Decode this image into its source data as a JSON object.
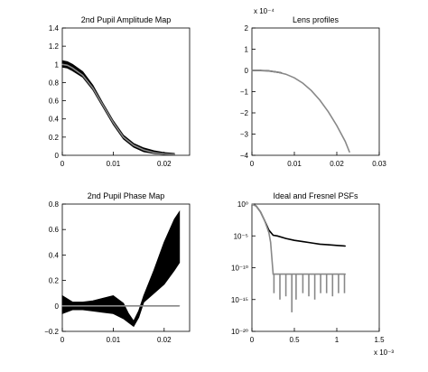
{
  "chart_data": [
    {
      "type": "line",
      "title": "2nd Pupil Amplitude Map",
      "xlabel": "",
      "ylabel": "",
      "xlim": [
        0,
        0.025
      ],
      "ylim": [
        0,
        1.4
      ],
      "x_ticks": [
        "0",
        "0.01",
        "0.02"
      ],
      "y_ticks": [
        "0",
        "0.2",
        "0.4",
        "0.6",
        "0.8",
        "1",
        "1.2",
        "1.4"
      ],
      "x_scale_label": "",
      "y_scale_label": "",
      "grid": false,
      "series": [
        {
          "color": "#000000",
          "style": "band (many overlapping black curves)",
          "x": [
            0.0,
            0.001,
            0.002,
            0.004,
            0.006,
            0.008,
            0.01,
            0.012,
            0.014,
            0.016,
            0.018,
            0.02,
            0.022
          ],
          "y_upper": [
            1.04,
            1.03,
            1.0,
            0.92,
            0.77,
            0.57,
            0.38,
            0.22,
            0.13,
            0.08,
            0.05,
            0.03,
            0.02
          ],
          "y_lower": [
            0.97,
            0.96,
            0.93,
            0.86,
            0.72,
            0.53,
            0.34,
            0.18,
            0.09,
            0.04,
            0.02,
            0.01,
            0.005
          ]
        },
        {
          "color": "#888888",
          "x": [
            0.0,
            0.001,
            0.002,
            0.004,
            0.006,
            0.008,
            0.01,
            0.012,
            0.014,
            0.016,
            0.018,
            0.02,
            0.022
          ],
          "y": [
            1.0,
            0.99,
            0.96,
            0.88,
            0.74,
            0.55,
            0.36,
            0.2,
            0.11,
            0.06,
            0.03,
            0.015,
            0.01
          ]
        }
      ]
    },
    {
      "type": "line",
      "title": "Lens profiles",
      "xlabel": "",
      "ylabel": "",
      "xlim": [
        0,
        0.03
      ],
      "ylim": [
        -4,
        2
      ],
      "x_ticks": [
        "0",
        "0.01",
        "0.02",
        "0.03"
      ],
      "y_ticks": [
        "−4",
        "−3",
        "−2",
        "−1",
        "0",
        "1",
        "2"
      ],
      "x_scale_label": "",
      "y_scale_label": "x 10⁻⁴",
      "grid": false,
      "series": [
        {
          "color": "#000000",
          "x": [
            0.0,
            0.002,
            0.004,
            0.006,
            0.007
          ],
          "y": [
            0.0,
            0.0,
            -0.02,
            -0.08,
            -0.12
          ]
        },
        {
          "color": "#888888",
          "x": [
            0.0,
            0.002,
            0.004,
            0.006,
            0.008,
            0.01,
            0.012,
            0.014,
            0.016,
            0.018,
            0.02,
            0.022,
            0.023
          ],
          "y": [
            0.0,
            -0.01,
            -0.03,
            -0.08,
            -0.18,
            -0.35,
            -0.6,
            -0.95,
            -1.4,
            -1.95,
            -2.6,
            -3.35,
            -3.85
          ]
        }
      ]
    },
    {
      "type": "line",
      "title": "2nd Pupil Phase Map",
      "xlabel": "",
      "ylabel": "",
      "xlim": [
        0,
        0.025
      ],
      "ylim": [
        -0.2,
        0.8
      ],
      "x_ticks": [
        "0",
        "0.01",
        "0.02"
      ],
      "y_ticks": [
        "−0.2",
        "0",
        "0.2",
        "0.4",
        "0.6",
        "0.8"
      ],
      "x_scale_label": "",
      "y_scale_label": "",
      "grid": false,
      "series": [
        {
          "color": "#000000",
          "style": "oscillating band (many overlapping black curves)",
          "x": [
            0.0,
            0.002,
            0.004,
            0.006,
            0.008,
            0.01,
            0.012,
            0.013,
            0.014,
            0.015,
            0.016,
            0.018,
            0.02,
            0.022,
            0.023
          ],
          "y_upper": [
            0.08,
            0.03,
            0.03,
            0.04,
            0.06,
            0.08,
            0.02,
            -0.06,
            -0.12,
            -0.04,
            0.08,
            0.28,
            0.5,
            0.68,
            0.74
          ],
          "y_lower": [
            -0.06,
            -0.03,
            -0.03,
            -0.04,
            -0.05,
            -0.06,
            -0.1,
            -0.13,
            -0.16,
            -0.09,
            0.03,
            0.1,
            0.17,
            0.28,
            0.34
          ]
        },
        {
          "color": "#888888",
          "x": [
            0.0,
            0.023
          ],
          "y": [
            0.0,
            0.0
          ]
        }
      ]
    },
    {
      "type": "line",
      "title": "Ideal and Fresnel PSFs",
      "xlabel": "",
      "ylabel": "",
      "xlim": [
        0,
        0.0015
      ],
      "ylim_log10": [
        -20,
        0
      ],
      "log_y": true,
      "x_ticks": [
        "0",
        "0.5",
        "1",
        "1.5"
      ],
      "y_ticks": [
        "10⁰",
        "10⁻⁵",
        "10⁻¹⁰",
        "10⁻¹⁵",
        "10⁻²⁰"
      ],
      "x_scale_label": "x 10⁻³",
      "y_scale_label": "",
      "grid": false,
      "series": [
        {
          "color": "#000000",
          "x": [
            0.0,
            0.05,
            0.1,
            0.15,
            0.2,
            0.25,
            0.3,
            0.4,
            0.5,
            0.6,
            0.7,
            0.8,
            0.9,
            1.0,
            1.1
          ],
          "y_log10": [
            0.0,
            -0.3,
            -1.2,
            -2.6,
            -4.1,
            -4.9,
            -5.0,
            -5.4,
            -5.7,
            -5.9,
            -6.1,
            -6.3,
            -6.4,
            -6.5,
            -6.6
          ]
        },
        {
          "color": "#888888",
          "x": [
            0.0,
            0.05,
            0.1,
            0.15,
            0.2,
            0.22,
            0.25,
            0.3,
            0.35,
            0.4,
            0.45,
            0.5,
            0.55,
            0.6,
            0.7,
            0.8,
            0.9,
            1.0,
            1.1
          ],
          "y_log10": [
            0.0,
            -0.3,
            -1.2,
            -2.6,
            -4.5,
            -6.0,
            -11.0,
            -11.0,
            -11.0,
            -11.0,
            -11.0,
            -11.0,
            -11.0,
            -11.0,
            -11.0,
            -11.0,
            -11.0,
            -11.0,
            -11.0
          ],
          "dip_x": [
            0.26,
            0.33,
            0.4,
            0.47,
            0.52,
            0.6,
            0.67,
            0.74,
            0.81,
            0.88,
            0.95,
            1.02,
            1.09
          ],
          "dip_log10": [
            -14,
            -15,
            -14.5,
            -17,
            -15,
            -14,
            -14.5,
            -15,
            -14,
            -14,
            -14.5,
            -14,
            -14
          ]
        }
      ]
    }
  ]
}
